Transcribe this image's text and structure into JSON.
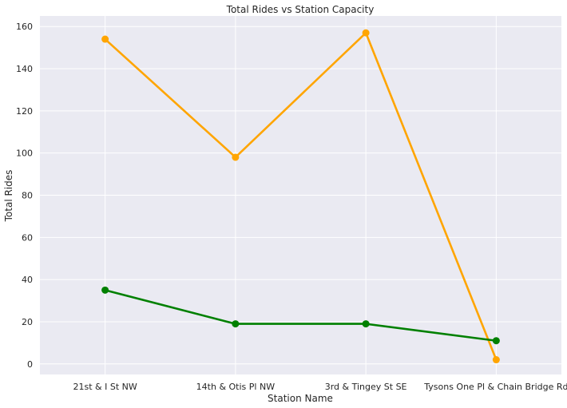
{
  "chart_data": {
    "type": "line",
    "title": "Total Rides vs Station Capacity",
    "xlabel": "Station Name",
    "ylabel": "Total Rides",
    "categories": [
      "21st & I St NW",
      "14th & Otis Pl NW",
      "3rd & Tingey St SE",
      "Tysons One Pl & Chain Bridge Rd"
    ],
    "ylim": [
      -5,
      165
    ],
    "yticks": [
      "0",
      "20",
      "40",
      "60",
      "80",
      "100",
      "120",
      "140",
      "160"
    ],
    "grid": true,
    "background": "#eaeaf2",
    "series": [
      {
        "values": [
          154,
          98,
          157,
          2
        ],
        "color": "#ffa500"
      },
      {
        "values": [
          35,
          19,
          19,
          11
        ],
        "color": "#008000"
      }
    ]
  }
}
